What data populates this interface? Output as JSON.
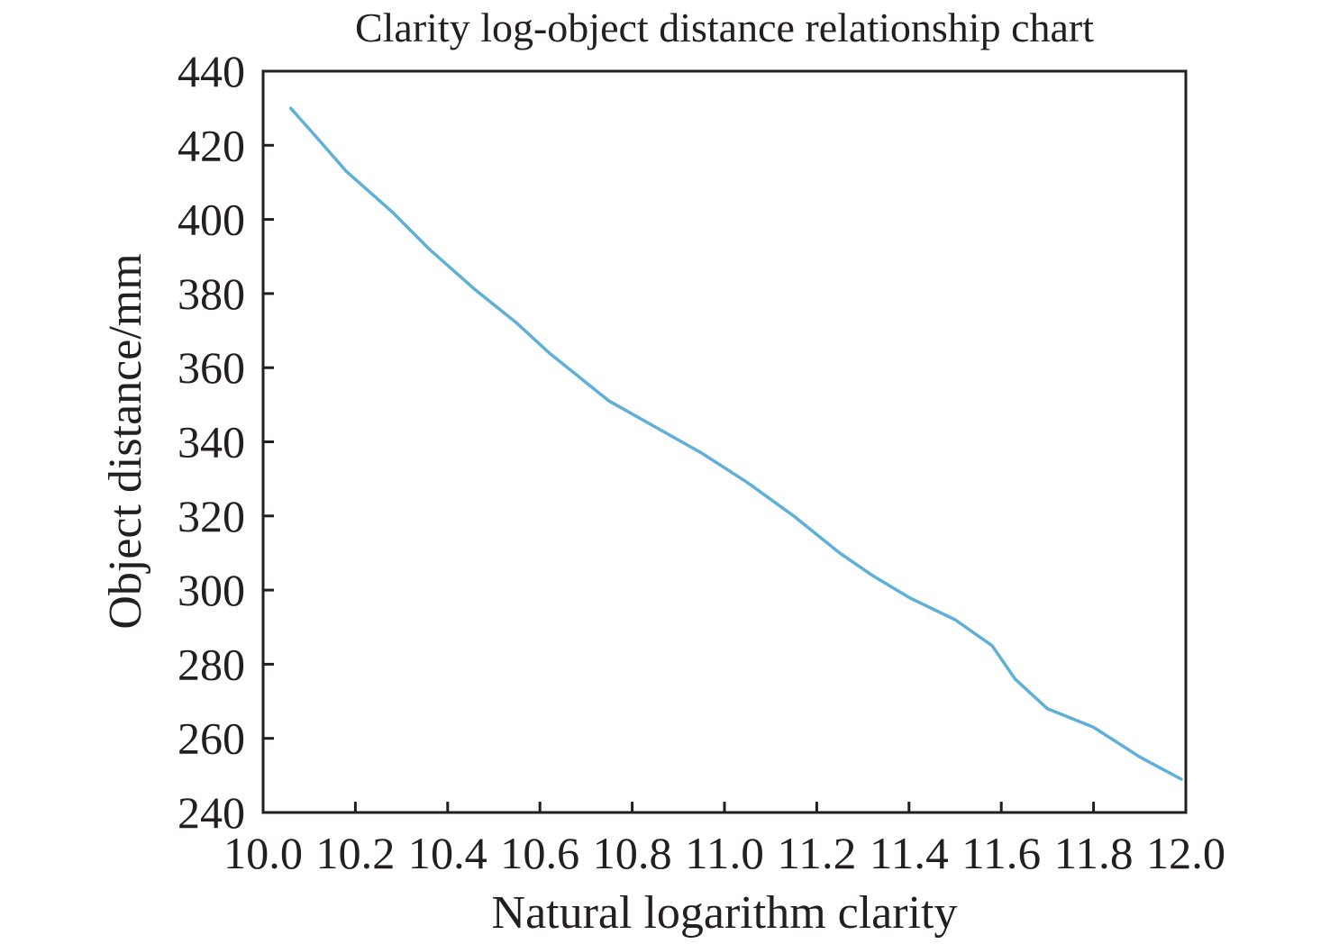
{
  "chart_data": {
    "type": "line",
    "title": "Clarity log-object distance relationship chart",
    "xlabel": "Natural logarithm clarity",
    "ylabel": "Object distance/mm",
    "xlim": [
      10.0,
      12.0
    ],
    "ylim": [
      240,
      440
    ],
    "xticks": [
      "10.0",
      "10.2",
      "10.4",
      "10.6",
      "10.8",
      "11.0",
      "11.2",
      "11.4",
      "11.6",
      "11.8",
      "12.0"
    ],
    "yticks": [
      "240",
      "260",
      "280",
      "300",
      "320",
      "340",
      "360",
      "380",
      "400",
      "420",
      "440"
    ],
    "grid": false,
    "legend": "none",
    "line_color": "#5fb0d8",
    "series": [
      {
        "x": [
          10.06,
          10.11,
          10.18,
          10.28,
          10.36,
          10.46,
          10.55,
          10.62,
          10.7,
          10.75,
          10.85,
          10.95,
          11.05,
          11.15,
          11.25,
          11.32,
          11.4,
          11.5,
          11.58,
          11.63,
          11.7,
          11.8,
          11.9,
          11.99
        ],
        "y": [
          430,
          423,
          413,
          402,
          392,
          381,
          372,
          364,
          356,
          351,
          344,
          337,
          329,
          320,
          310,
          304,
          298,
          292,
          285,
          276,
          268,
          263,
          255,
          249
        ]
      }
    ]
  }
}
